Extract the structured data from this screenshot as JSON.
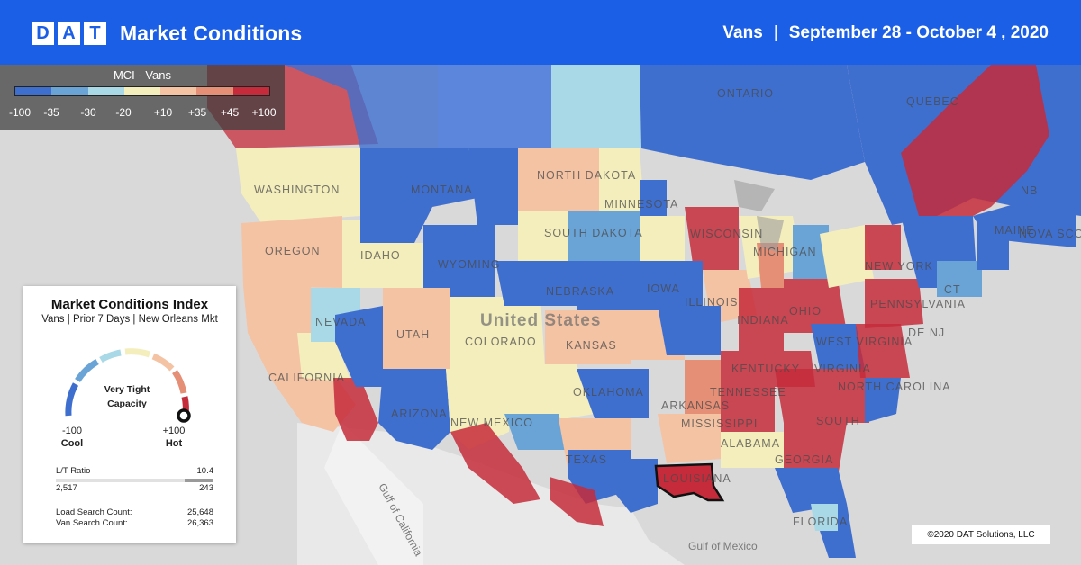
{
  "header": {
    "logo_letters": [
      "D",
      "A",
      "T"
    ],
    "title": "Market Conditions",
    "equipment": "Vans",
    "separator": "|",
    "date_range": "September 28 - October 4 , 2020"
  },
  "legend": {
    "title": "MCI - Vans",
    "colors": [
      "#3f6fce",
      "#6aa4d6",
      "#a9d8e6",
      "#f4eebd",
      "#f4c3a4",
      "#e68f77",
      "#c62b3b"
    ],
    "ticks": [
      "-100",
      "-35",
      "-30",
      "-20",
      "+10",
      "+35",
      "+45",
      "+100"
    ]
  },
  "map": {
    "country_label": "United States",
    "state_labels": [
      "WASHINGTON",
      "MONTANA",
      "NORTH DAKOTA",
      "MINNESOTA",
      "OREGON",
      "IDAHO",
      "SOUTH DAKOTA",
      "WISCONSIN",
      "MICHIGAN",
      "WYOMING",
      "NEBRASKA",
      "IOWA",
      "NEVADA",
      "UTAH",
      "COLORADO",
      "KANSAS",
      "ILLINOIS",
      "INDIANA",
      "OHIO",
      "PENNSYLVANIA",
      "NEW YORK",
      "MAINE",
      "NOVA SCOTIA",
      "NB",
      "QUEBEC",
      "ONTARIO",
      "CALIFORNIA",
      "ARIZONA",
      "NEW MEXICO",
      "OKLAHOMA",
      "TEXAS",
      "ARKANSAS",
      "MISSISSIPPI",
      "ALABAMA",
      "GEORGIA",
      "FLORIDA",
      "KENTUCKY",
      "TENNESSEE",
      "WEST VIRGINIA",
      "VIRGINIA",
      "NORTH CAROLINA",
      "SOUTH",
      "LOUISIANA",
      "DE NJ",
      "CT"
    ],
    "water_labels": [
      "Gulf of California",
      "Gulf of Mexico"
    ],
    "highlighted_market": "New Orleans"
  },
  "card": {
    "title": "Market Conditions Index",
    "subtitle": "Vans | Prior 7 Days | New Orleans Mkt",
    "gauge_status_line1": "Very Tight",
    "gauge_status_line2": "Capacity",
    "gauge_value": 100,
    "gauge_min_value": "-100",
    "gauge_min_label": "Cool",
    "gauge_max_value": "+100",
    "gauge_max_label": "Hot",
    "lt_ratio_label": "L/T Ratio",
    "lt_ratio_value": "10.4",
    "loads": "2,517",
    "trucks": "243",
    "load_search_label": "Load Search Count:",
    "load_search_value": "25,648",
    "van_search_label": "Van Search Count:",
    "van_search_value": "26,363"
  },
  "copyright": "©2020 DAT Solutions, LLC"
}
